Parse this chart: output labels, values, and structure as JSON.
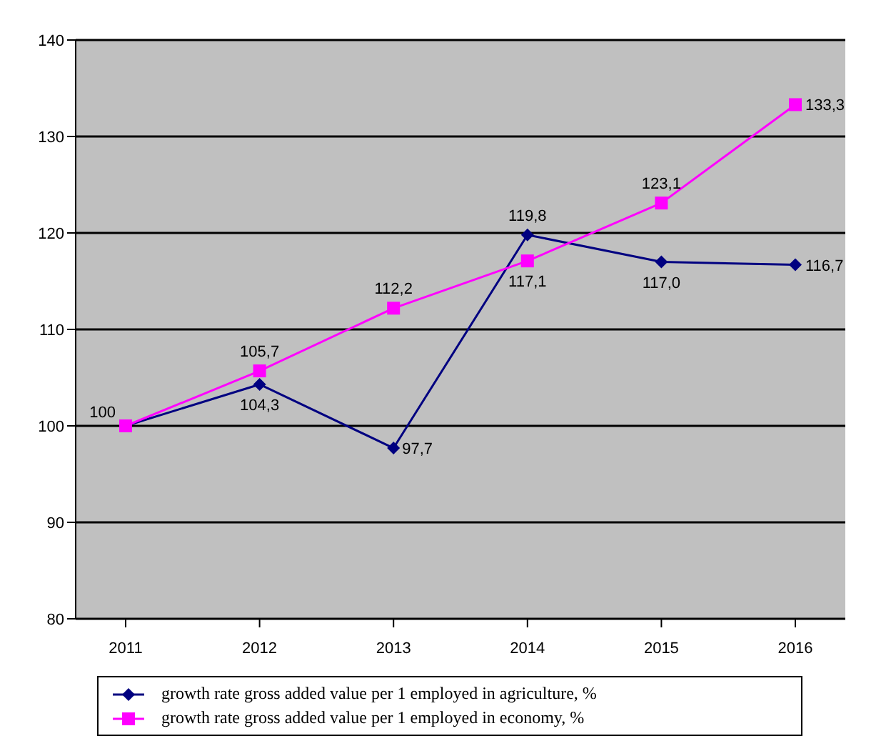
{
  "chart_data": {
    "type": "line",
    "categories": [
      "2011",
      "2012",
      "2013",
      "2014",
      "2015",
      "2016"
    ],
    "series": [
      {
        "name": "growth rate gross added value per 1 employed in agriculture, %",
        "color": "#000080",
        "marker": "diamond",
        "values": [
          100,
          104.3,
          97.7,
          119.8,
          117.0,
          116.7
        ],
        "value_labels": [
          "100",
          "104,3",
          "97,7",
          "119,8",
          "117,0",
          "116,7"
        ]
      },
      {
        "name": "growth rate gross added value per 1 employed in economy, %",
        "color": "#ff00ff",
        "marker": "square",
        "values": [
          100,
          105.7,
          112.2,
          117.1,
          123.1,
          133.3
        ],
        "value_labels": [
          null,
          "105,7",
          "112,2",
          "117,1",
          "123,1",
          "133,3"
        ]
      }
    ],
    "ylim": [
      80,
      140
    ],
    "yticks": [
      80,
      90,
      100,
      110,
      120,
      130,
      140
    ],
    "grid": "y",
    "legend": "bottom"
  }
}
